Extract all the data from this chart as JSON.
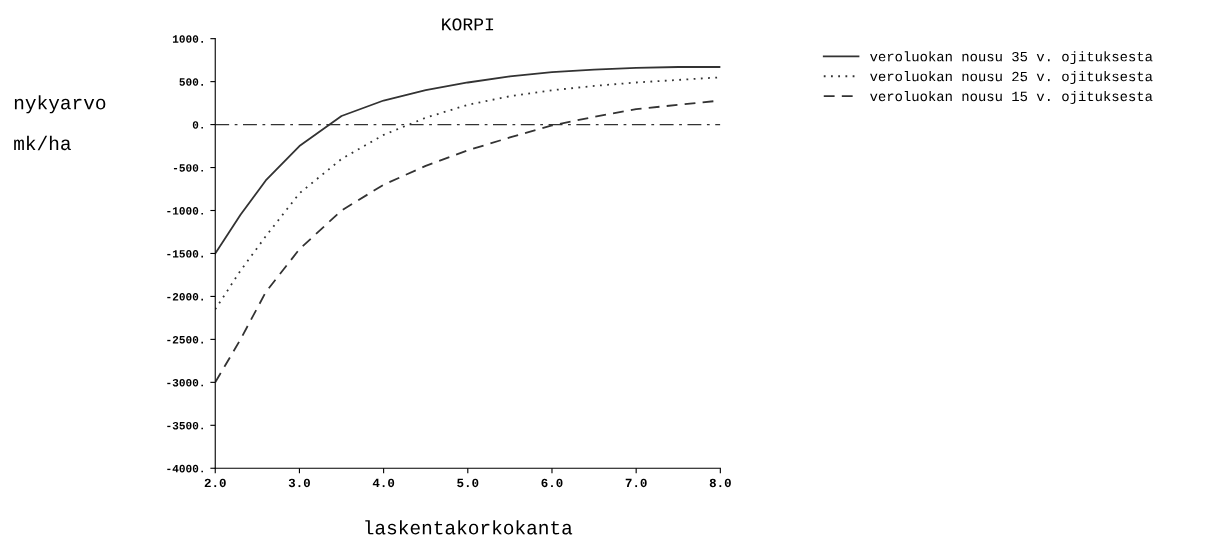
{
  "chart_data": {
    "type": "line",
    "title": "KORPI",
    "xlabel": "laskentakorkokanta",
    "ylabel": "nykyarvo\nmk/ha",
    "x": [
      2.0,
      2.3,
      2.6,
      3.0,
      3.5,
      4.0,
      4.5,
      5.0,
      5.5,
      6.0,
      6.5,
      7.0,
      7.5,
      8.0
    ],
    "series": [
      {
        "name": "veroluokan nousu 35 v. ojituksesta",
        "color": "#333333",
        "line_style": "solid",
        "values": [
          -1500,
          -1050,
          -650,
          -250,
          100,
          280,
          400,
          490,
          560,
          610,
          640,
          660,
          670,
          670
        ]
      },
      {
        "name": "veroluokan nousu 25 v. ojituksesta",
        "color": "#333333",
        "line_style": "dotted",
        "values": [
          -2150,
          -1700,
          -1300,
          -800,
          -400,
          -120,
          80,
          230,
          330,
          400,
          450,
          490,
          520,
          550
        ]
      },
      {
        "name": "veroluokan nousu 15 v. ojituksesta",
        "color": "#333333",
        "line_style": "dashed",
        "values": [
          -3000,
          -2500,
          -1950,
          -1450,
          -1000,
          -700,
          -480,
          -300,
          -150,
          -10,
          90,
          180,
          230,
          280
        ]
      }
    ],
    "xlim": [
      2.0,
      8.0
    ],
    "xticks": [
      {
        "value": 2,
        "label": "2.0"
      },
      {
        "value": 3,
        "label": "3.0"
      },
      {
        "value": 4,
        "label": "4.0"
      },
      {
        "value": 5,
        "label": "5.0"
      },
      {
        "value": 6,
        "label": "6.0"
      },
      {
        "value": 7,
        "label": "7.0"
      },
      {
        "value": 8,
        "label": "8.0"
      }
    ],
    "ylim": [
      -4000,
      1000
    ],
    "yticks": [
      {
        "value": -4000,
        "label": "-4000."
      },
      {
        "value": -3500,
        "label": "-3500."
      },
      {
        "value": -3000,
        "label": "-3000."
      },
      {
        "value": -2500,
        "label": "-2500."
      },
      {
        "value": -2000,
        "label": "-2000."
      },
      {
        "value": -1500,
        "label": "-1500."
      },
      {
        "value": -1000,
        "label": "-1000."
      },
      {
        "value": -500,
        "label": "-500."
      },
      {
        "value": 0,
        "label": "0."
      },
      {
        "value": 500,
        "label": "500."
      },
      {
        "value": 1000,
        "label": "1000."
      }
    ],
    "ref_lines": [
      {
        "axis": "y",
        "value": 0,
        "color": "#333333",
        "line_style": "dashdot"
      }
    ],
    "legend": "right",
    "grid": false,
    "marker": "none"
  }
}
